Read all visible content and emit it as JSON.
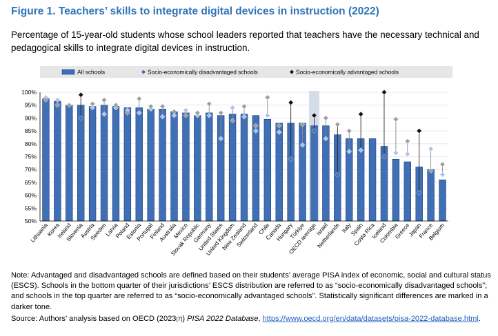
{
  "figure": {
    "title": "Figure 1. Teachers’ skills to integrate digital devices in instruction (2022)",
    "subtitle": "Percentage of 15-year-old students whose school leaders reported that teachers have the necessary technical and pedagogical skills to integrate digital devices in instruction."
  },
  "footer": {
    "note": "Note: Advantaged and disadvantaged schools are defined based on their students’ average PISA index of economic, social and cultural status (ESCS). Schools in the bottom quarter of their jurisdictions’ ESCS distribution are referred to as “socio-economically disadvantaged schools”; and schools in the top quarter are referred to as “socio-economically advantaged schools”. Statistically significant differences are marked in a darker tone.",
    "source_prefix": "Source: Authors’ analysis based on OECD (2023",
    "source_ref": "[7]",
    "source_mid": ") ",
    "source_db": "PISA 2022 Database",
    "source_sep": ", ",
    "source_url": "https://www.oecd.org/en/data/datasets/pisa-2022-database.html",
    "source_end": "."
  },
  "colors": {
    "bar": "#3f6fb5",
    "bar_edge": "#1e3f7a",
    "diamond_light": "#a8c4ea",
    "diamond_dark": "#4a6ea8",
    "adv_light": "#9e9e9e",
    "adv_dark": "#111111",
    "legend_bg": "#e6e6e6",
    "highlight_bar": "#d7dde8",
    "grid": "#e3e3e3"
  },
  "chart_data": {
    "type": "bar",
    "ylim": [
      50,
      100
    ],
    "yticks": [
      "50%",
      "55%",
      "60%",
      "65%",
      "70%",
      "75%",
      "80%",
      "85%",
      "90%",
      "95%",
      "100%"
    ],
    "legend": [
      {
        "label": "All schools",
        "marker": "bar"
      },
      {
        "label": "Socio-economically disadvantaged schools",
        "marker": "diamond"
      },
      {
        "label": "Socio-economically advantaged schools",
        "marker": "diamond-dark"
      }
    ],
    "highlight": "OECD average",
    "categories": [
      "Lithuania",
      "Korea",
      "Ireland",
      "Slovenia",
      "Austria",
      "Sweden",
      "Latvia",
      "Poland",
      "Estonia",
      "Portugal",
      "Finland",
      "Australia",
      "Mexico",
      "Slovak Republic",
      "Germany",
      "United States",
      "United Kingdom",
      "New Zealand",
      "Switzerland",
      "Chile",
      "Canada",
      "Hungary",
      "Türkiye",
      "OECD average",
      "Israel",
      "Netherlands",
      "Italy",
      "Spain",
      "Costa Rica",
      "Iceland",
      "Colombia",
      "Greece",
      "Japan",
      "France",
      "Belgium"
    ],
    "series": [
      {
        "name": "All schools",
        "values": [
          97.5,
          96.5,
          95,
          95,
          94.5,
          95,
          94.5,
          94,
          94,
          93.5,
          93.5,
          92.5,
          92,
          91,
          92,
          91,
          91.5,
          91.5,
          91,
          89.5,
          88,
          88,
          88,
          87,
          87,
          83.5,
          82,
          82,
          82,
          79,
          74,
          73,
          71,
          70,
          66
        ]
      },
      {
        "name": "Socio-economically disadvantaged schools",
        "values": [
          98,
          97,
          95,
          90,
          94,
          91.5,
          94,
          93,
          92,
          93.5,
          90.5,
          91,
          93,
          91,
          91,
          82,
          94,
          90.5,
          85,
          91,
          84.5,
          74,
          79.5,
          85,
          82,
          68,
          77,
          77.5,
          null,
          75,
          76.5,
          76,
          61,
          78,
          68
        ],
        "significant": [
          false,
          false,
          false,
          true,
          false,
          false,
          false,
          false,
          false,
          false,
          false,
          false,
          false,
          false,
          false,
          false,
          false,
          false,
          false,
          false,
          false,
          true,
          false,
          true,
          false,
          true,
          false,
          false,
          false,
          true,
          false,
          false,
          true,
          false,
          false
        ]
      },
      {
        "name": "Socio-economically advantaged schools",
        "values": [
          97,
          95,
          95,
          99,
          95.5,
          97,
          95,
          92,
          97.5,
          94.5,
          94.5,
          92.5,
          91,
          92,
          95.5,
          92,
          89,
          94.5,
          87,
          98,
          87,
          96,
          87.5,
          91,
          90,
          87.5,
          85,
          91.5,
          null,
          100,
          89.5,
          81,
          85,
          69.5,
          72
        ],
        "significant": [
          false,
          false,
          false,
          true,
          false,
          false,
          false,
          false,
          false,
          false,
          false,
          false,
          false,
          false,
          false,
          false,
          false,
          false,
          false,
          false,
          false,
          true,
          false,
          true,
          false,
          false,
          false,
          true,
          false,
          true,
          false,
          false,
          true,
          false,
          false
        ]
      }
    ]
  }
}
